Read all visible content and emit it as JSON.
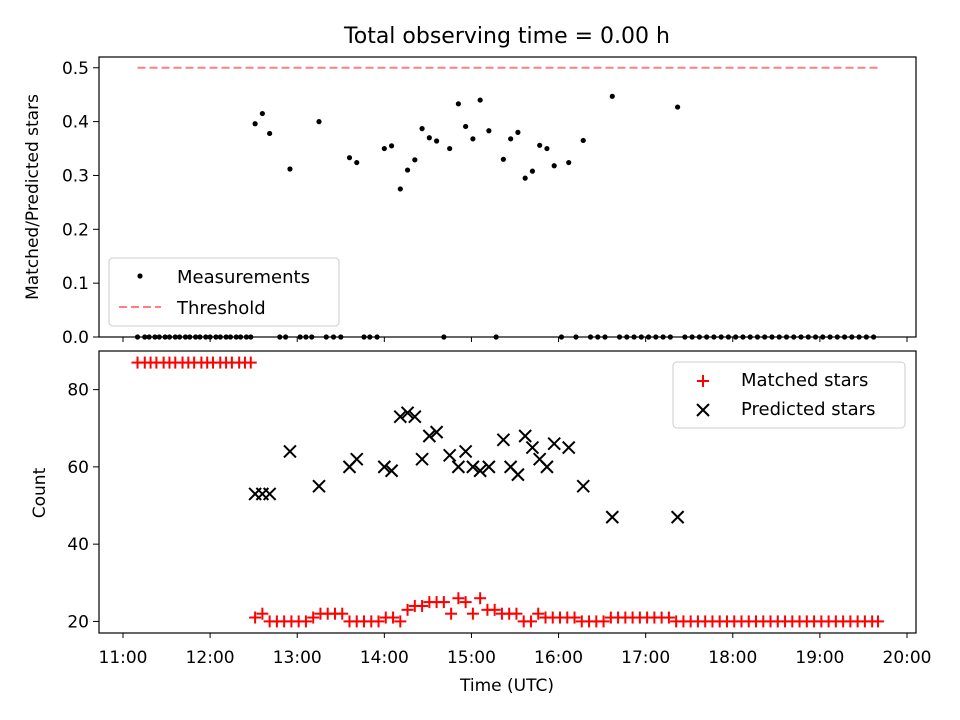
{
  "figure": {
    "title": "Total observing time = 0.00 h",
    "xlabel": "Time (UTC)"
  },
  "chart_data": [
    {
      "type": "scatter",
      "ylabel": "Matched/Predicted stars",
      "xlim": [
        "11:00",
        "20:00"
      ],
      "ylim": [
        0,
        0.52
      ],
      "yticks": [
        0.0,
        0.1,
        0.2,
        0.3,
        0.4,
        0.5
      ],
      "ytick_labels": [
        "0.0",
        "0.1",
        "0.2",
        "0.3",
        "0.4",
        "0.5"
      ],
      "xtick_labels": [],
      "grid": false,
      "legend_position": "lower-left",
      "series": [
        {
          "name": "Measurements",
          "marker": "dot",
          "color": "#000000",
          "points": [
            [
              "11:10",
              0
            ],
            [
              "11:15",
              0
            ],
            [
              "11:18",
              0
            ],
            [
              "11:22",
              0
            ],
            [
              "11:25",
              0
            ],
            [
              "11:29",
              0
            ],
            [
              "11:32",
              0
            ],
            [
              "11:36",
              0
            ],
            [
              "11:39",
              0
            ],
            [
              "11:43",
              0
            ],
            [
              "11:46",
              0
            ],
            [
              "11:50",
              0
            ],
            [
              "11:53",
              0
            ],
            [
              "11:57",
              0
            ],
            [
              "12:00",
              0
            ],
            [
              "12:04",
              0
            ],
            [
              "12:07",
              0
            ],
            [
              "12:11",
              0
            ],
            [
              "12:14",
              0
            ],
            [
              "12:18",
              0
            ],
            [
              "12:21",
              0
            ],
            [
              "12:25",
              0
            ],
            [
              "12:28",
              0
            ],
            [
              "12:31",
              0.396
            ],
            [
              "12:36",
              0.415
            ],
            [
              "12:41",
              0.378
            ],
            [
              "12:48",
              0
            ],
            [
              "12:52",
              0
            ],
            [
              "12:55",
              0.312
            ],
            [
              "13:02",
              0
            ],
            [
              "13:06",
              0
            ],
            [
              "13:10",
              0
            ],
            [
              "13:15",
              0.4
            ],
            [
              "13:20",
              0
            ],
            [
              "13:25",
              0
            ],
            [
              "13:30",
              0
            ],
            [
              "13:36",
              0.333
            ],
            [
              "13:41",
              0.324
            ],
            [
              "13:46",
              0
            ],
            [
              "13:50",
              0
            ],
            [
              "13:55",
              0
            ],
            [
              "14:00",
              0.35
            ],
            [
              "14:05",
              0.355
            ],
            [
              "14:11",
              0.275
            ],
            [
              "14:16",
              0.31
            ],
            [
              "14:21",
              0.329
            ],
            [
              "14:26",
              0.387
            ],
            [
              "14:31",
              0.37
            ],
            [
              "14:36",
              0.364
            ],
            [
              "14:41",
              0
            ],
            [
              "14:45",
              0.35
            ],
            [
              "14:51",
              0.433
            ],
            [
              "14:56",
              0.391
            ],
            [
              "15:01",
              0.368
            ],
            [
              "15:06",
              0.44
            ],
            [
              "15:12",
              0.383
            ],
            [
              "15:17",
              0
            ],
            [
              "15:22",
              0.33
            ],
            [
              "15:27",
              0.368
            ],
            [
              "15:32",
              0.38
            ],
            [
              "15:37",
              0.295
            ],
            [
              "15:42",
              0.308
            ],
            [
              "15:47",
              0.356
            ],
            [
              "15:52",
              0.35
            ],
            [
              "15:57",
              0.318
            ],
            [
              "16:02",
              0
            ],
            [
              "16:07",
              0.324
            ],
            [
              "16:12",
              0
            ],
            [
              "16:17",
              0.365
            ],
            [
              "16:22",
              0
            ],
            [
              "16:27",
              0
            ],
            [
              "16:32",
              0
            ],
            [
              "16:37",
              0.447
            ],
            [
              "16:42",
              0
            ],
            [
              "16:47",
              0
            ],
            [
              "16:52",
              0
            ],
            [
              "16:57",
              0
            ],
            [
              "17:02",
              0
            ],
            [
              "17:07",
              0
            ],
            [
              "17:12",
              0
            ],
            [
              "17:17",
              0
            ],
            [
              "17:22",
              0.427
            ],
            [
              "17:27",
              0
            ],
            [
              "17:32",
              0
            ],
            [
              "17:37",
              0
            ],
            [
              "17:42",
              0
            ],
            [
              "17:47",
              0
            ],
            [
              "17:52",
              0
            ],
            [
              "17:57",
              0
            ],
            [
              "18:02",
              0
            ],
            [
              "18:07",
              0
            ],
            [
              "18:12",
              0
            ],
            [
              "18:17",
              0
            ],
            [
              "18:22",
              0
            ],
            [
              "18:27",
              0
            ],
            [
              "18:32",
              0
            ],
            [
              "18:37",
              0
            ],
            [
              "18:42",
              0
            ],
            [
              "18:47",
              0
            ],
            [
              "18:52",
              0
            ],
            [
              "18:57",
              0
            ],
            [
              "19:02",
              0
            ],
            [
              "19:07",
              0
            ],
            [
              "19:12",
              0
            ],
            [
              "19:17",
              0
            ],
            [
              "19:22",
              0
            ],
            [
              "19:27",
              0
            ],
            [
              "19:32",
              0
            ],
            [
              "19:37",
              0
            ]
          ]
        },
        {
          "name": "Threshold",
          "type": "line",
          "style": "dashed",
          "color": "#ff7f7f",
          "points": [
            [
              "11:10",
              0.5
            ],
            [
              "19:40",
              0.5
            ]
          ]
        }
      ]
    },
    {
      "type": "scatter",
      "ylabel": "Count",
      "xlim": [
        "11:00",
        "20:00"
      ],
      "ylim": [
        17,
        90
      ],
      "yticks": [
        20,
        40,
        60,
        80
      ],
      "ytick_labels": [
        "20",
        "40",
        "60",
        "80"
      ],
      "xtick_labels": [
        "11:00",
        "12:00",
        "13:00",
        "14:00",
        "15:00",
        "16:00",
        "17:00",
        "18:00",
        "19:00",
        "20:00"
      ],
      "grid": false,
      "legend_position": "upper-right",
      "series": [
        {
          "name": "Matched stars",
          "marker": "plus",
          "color": "#ff0000",
          "points": [
            [
              "11:10",
              87
            ],
            [
              "11:15",
              87
            ],
            [
              "11:19",
              87
            ],
            [
              "11:23",
              87
            ],
            [
              "11:28",
              87
            ],
            [
              "11:32",
              87
            ],
            [
              "11:36",
              87
            ],
            [
              "11:41",
              87
            ],
            [
              "11:45",
              87
            ],
            [
              "11:49",
              87
            ],
            [
              "11:54",
              87
            ],
            [
              "11:58",
              87
            ],
            [
              "12:02",
              87
            ],
            [
              "12:07",
              87
            ],
            [
              "12:11",
              87
            ],
            [
              "12:15",
              87
            ],
            [
              "12:20",
              87
            ],
            [
              "12:24",
              87
            ],
            [
              "12:28",
              87
            ],
            [
              "12:31",
              21
            ],
            [
              "12:36",
              22
            ],
            [
              "12:41",
              20
            ],
            [
              "12:46",
              20
            ],
            [
              "12:51",
              20
            ],
            [
              "12:56",
              20
            ],
            [
              "13:01",
              20
            ],
            [
              "13:06",
              20
            ],
            [
              "13:11",
              21
            ],
            [
              "13:16",
              22
            ],
            [
              "13:21",
              22
            ],
            [
              "13:26",
              22
            ],
            [
              "13:31",
              22
            ],
            [
              "13:36",
              20
            ],
            [
              "13:41",
              20
            ],
            [
              "13:46",
              20
            ],
            [
              "13:51",
              20
            ],
            [
              "13:56",
              20
            ],
            [
              "14:01",
              21
            ],
            [
              "14:06",
              21
            ],
            [
              "14:11",
              20
            ],
            [
              "14:16",
              23
            ],
            [
              "14:21",
              24
            ],
            [
              "14:26",
              24
            ],
            [
              "14:31",
              25
            ],
            [
              "14:36",
              25
            ],
            [
              "14:41",
              25
            ],
            [
              "14:46",
              22
            ],
            [
              "14:51",
              26
            ],
            [
              "14:56",
              25
            ],
            [
              "15:01",
              22
            ],
            [
              "15:06",
              26
            ],
            [
              "15:11",
              23
            ],
            [
              "15:16",
              23
            ],
            [
              "15:21",
              22
            ],
            [
              "15:26",
              22
            ],
            [
              "15:31",
              22
            ],
            [
              "15:36",
              20
            ],
            [
              "15:41",
              20
            ],
            [
              "15:46",
              22
            ],
            [
              "15:51",
              21
            ],
            [
              "15:56",
              21
            ],
            [
              "16:01",
              21
            ],
            [
              "16:06",
              21
            ],
            [
              "16:11",
              21
            ],
            [
              "16:16",
              20
            ],
            [
              "16:21",
              20
            ],
            [
              "16:26",
              20
            ],
            [
              "16:31",
              20
            ],
            [
              "16:36",
              21
            ],
            [
              "16:41",
              21
            ],
            [
              "16:46",
              21
            ],
            [
              "16:51",
              21
            ],
            [
              "16:56",
              21
            ],
            [
              "17:01",
              21
            ],
            [
              "17:06",
              21
            ],
            [
              "17:11",
              21
            ],
            [
              "17:16",
              21
            ],
            [
              "17:21",
              20
            ],
            [
              "17:26",
              20
            ],
            [
              "17:31",
              20
            ],
            [
              "17:36",
              20
            ],
            [
              "17:41",
              20
            ],
            [
              "17:46",
              20
            ],
            [
              "17:51",
              20
            ],
            [
              "17:56",
              20
            ],
            [
              "18:01",
              20
            ],
            [
              "18:06",
              20
            ],
            [
              "18:11",
              20
            ],
            [
              "18:16",
              20
            ],
            [
              "18:21",
              20
            ],
            [
              "18:26",
              20
            ],
            [
              "18:31",
              20
            ],
            [
              "18:36",
              20
            ],
            [
              "18:41",
              20
            ],
            [
              "18:46",
              20
            ],
            [
              "18:51",
              20
            ],
            [
              "18:56",
              20
            ],
            [
              "19:01",
              20
            ],
            [
              "19:06",
              20
            ],
            [
              "19:11",
              20
            ],
            [
              "19:16",
              20
            ],
            [
              "19:21",
              20
            ],
            [
              "19:26",
              20
            ],
            [
              "19:31",
              20
            ],
            [
              "19:36",
              20
            ],
            [
              "19:40",
              20
            ]
          ]
        },
        {
          "name": "Predicted stars",
          "marker": "x",
          "color": "#000000",
          "points": [
            [
              "12:31",
              53
            ],
            [
              "12:36",
              53
            ],
            [
              "12:41",
              53
            ],
            [
              "12:55",
              64
            ],
            [
              "13:15",
              55
            ],
            [
              "13:36",
              60
            ],
            [
              "13:41",
              62
            ],
            [
              "14:00",
              60
            ],
            [
              "14:05",
              59
            ],
            [
              "14:11",
              73
            ],
            [
              "14:16",
              74
            ],
            [
              "14:21",
              73
            ],
            [
              "14:26",
              62
            ],
            [
              "14:31",
              68
            ],
            [
              "14:36",
              69
            ],
            [
              "14:45",
              63
            ],
            [
              "14:51",
              60
            ],
            [
              "14:56",
              64
            ],
            [
              "15:01",
              60
            ],
            [
              "15:06",
              59
            ],
            [
              "15:12",
              60
            ],
            [
              "15:22",
              67
            ],
            [
              "15:27",
              60
            ],
            [
              "15:32",
              58
            ],
            [
              "15:37",
              68
            ],
            [
              "15:42",
              65
            ],
            [
              "15:47",
              62
            ],
            [
              "15:52",
              60
            ],
            [
              "15:57",
              66
            ],
            [
              "16:07",
              65
            ],
            [
              "16:17",
              55
            ],
            [
              "16:37",
              47
            ],
            [
              "17:22",
              47
            ]
          ]
        }
      ]
    }
  ]
}
